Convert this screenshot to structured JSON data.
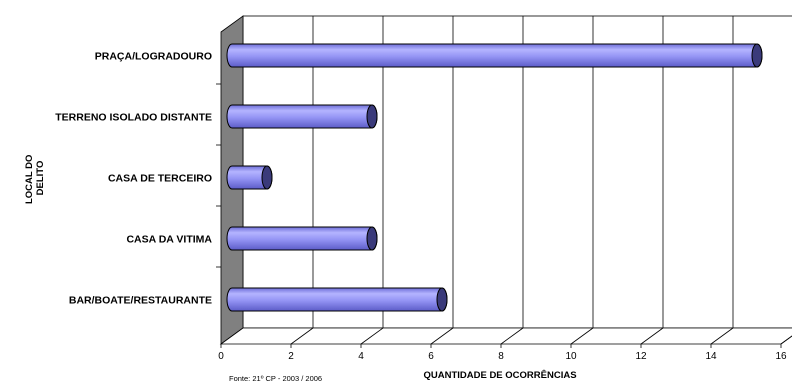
{
  "chart_data": {
    "type": "bar",
    "orientation": "horizontal",
    "style": "3d-cylinder",
    "categories": [
      "PRAÇA/LOGRADOURO",
      "TERRENO ISOLADO DISTANTE",
      "CASA DE TERCEIRO",
      "CASA DA VITIMA",
      "BAR/BOATE/RESTAURANTE"
    ],
    "values": [
      15,
      4,
      1,
      4,
      6
    ],
    "xlabel": "QUANTIDADE DE OCORRÊNCIAS",
    "ylabel_lines": [
      "LOCAL DO",
      "DELITO"
    ],
    "xlim": [
      0,
      16
    ],
    "xticks": [
      "0",
      "2",
      "4",
      "6",
      "8",
      "10",
      "12",
      "14",
      "16"
    ],
    "grid": true,
    "source": "Fonte: 21º CP - 2003 / 2006",
    "colors": {
      "bar": "#8c8cf0",
      "bar_cap": "#3a3a7a",
      "wall": "#808080",
      "grid": "#000000"
    }
  }
}
